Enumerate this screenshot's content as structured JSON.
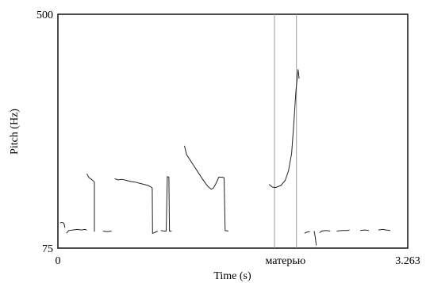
{
  "chart_data": {
    "type": "line",
    "xlabel": "Time (s)",
    "ylabel": "Pitch (Hz)",
    "xlim": [
      0,
      3.263
    ],
    "ylim": [
      75,
      500
    ],
    "x_tick_labels": {
      "min": "0",
      "max": "3.263"
    },
    "y_tick_labels": {
      "min": "75",
      "max": "500"
    },
    "interval_label": "матерью",
    "interval_bounds": [
      2.02,
      2.225
    ],
    "line_color": "#222222",
    "marker_color": "#9a9a9a",
    "segments": [
      [
        [
          0.02,
          121
        ],
        [
          0.035,
          122
        ],
        [
          0.05,
          121
        ],
        [
          0.06,
          118
        ],
        [
          0.065,
          112
        ]
      ],
      [
        [
          0.08,
          102
        ],
        [
          0.1,
          107
        ],
        [
          0.14,
          108
        ],
        [
          0.18,
          109
        ],
        [
          0.22,
          108
        ],
        [
          0.25,
          109
        ],
        [
          0.27,
          108
        ]
      ],
      [
        [
          0.27,
          210
        ],
        [
          0.29,
          203
        ],
        [
          0.32,
          199
        ],
        [
          0.33,
          197
        ],
        [
          0.34,
          195
        ],
        [
          0.34,
          105
        ]
      ],
      [
        [
          0.42,
          106
        ],
        [
          0.46,
          105
        ],
        [
          0.5,
          106
        ]
      ],
      [
        [
          0.53,
          201
        ],
        [
          0.56,
          199
        ],
        [
          0.6,
          200
        ],
        [
          0.64,
          198
        ],
        [
          0.68,
          196
        ],
        [
          0.72,
          195
        ],
        [
          0.76,
          193
        ],
        [
          0.8,
          191
        ],
        [
          0.84,
          189
        ],
        [
          0.86,
          187
        ],
        [
          0.87,
          186
        ],
        [
          0.88,
          184
        ],
        [
          0.883,
          102
        ],
        [
          0.91,
          104
        ],
        [
          0.93,
          106
        ]
      ],
      [
        [
          0.96,
          107
        ],
        [
          0.99,
          106
        ],
        [
          1.01,
          106
        ],
        [
          1.02,
          205
        ],
        [
          1.035,
          204
        ],
        [
          1.04,
          106
        ],
        [
          1.06,
          106
        ]
      ],
      [
        [
          1.18,
          261
        ],
        [
          1.2,
          245
        ],
        [
          1.25,
          230
        ],
        [
          1.3,
          215
        ],
        [
          1.35,
          200
        ],
        [
          1.38,
          192
        ],
        [
          1.4,
          187
        ],
        [
          1.43,
          182
        ],
        [
          1.45,
          184
        ],
        [
          1.47,
          191
        ],
        [
          1.49,
          199
        ],
        [
          1.5,
          204
        ],
        [
          1.53,
          204
        ],
        [
          1.55,
          203
        ],
        [
          1.56,
          107
        ],
        [
          1.59,
          106
        ]
      ],
      [
        [
          1.97,
          191
        ],
        [
          2.0,
          186
        ],
        [
          2.03,
          185
        ],
        [
          2.08,
          189
        ],
        [
          2.12,
          198
        ],
        [
          2.15,
          215
        ],
        [
          2.18,
          247
        ],
        [
          2.2,
          300
        ],
        [
          2.22,
          360
        ],
        [
          2.24,
          400
        ],
        [
          2.25,
          383
        ]
      ],
      [
        [
          2.3,
          102
        ],
        [
          2.32,
          104
        ],
        [
          2.35,
          105
        ]
      ],
      [
        [
          2.39,
          106
        ],
        [
          2.4,
          95
        ],
        [
          2.41,
          80
        ]
      ],
      [
        [
          2.44,
          103
        ],
        [
          2.46,
          106
        ],
        [
          2.5,
          107
        ],
        [
          2.54,
          106
        ]
      ],
      [
        [
          2.6,
          106
        ],
        [
          2.65,
          107
        ],
        [
          2.7,
          107
        ],
        [
          2.72,
          108
        ]
      ],
      [
        [
          2.82,
          107
        ],
        [
          2.86,
          108
        ],
        [
          2.9,
          107
        ]
      ],
      [
        [
          2.99,
          108
        ],
        [
          3.03,
          109
        ],
        [
          3.06,
          108
        ],
        [
          3.1,
          107
        ]
      ]
    ]
  }
}
